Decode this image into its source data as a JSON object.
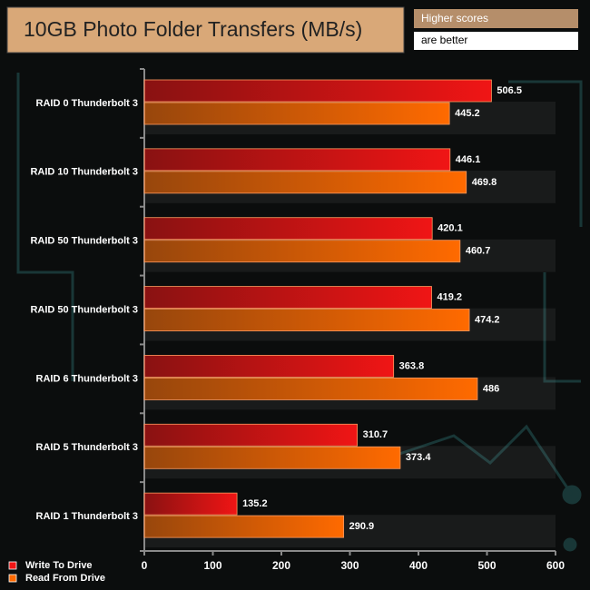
{
  "chart_data": {
    "type": "hbar",
    "title": "10GB Photo Folder Transfers (MB/s)",
    "note_line1": "Higher scores",
    "note_line2": "are better",
    "categories": [
      "RAID 0 Thunderbolt 3",
      "RAID 10 Thunderbolt 3",
      "RAID 50 Thunderbolt 3",
      "RAID 50 Thunderbolt 3",
      "RAID 6 Thunderbolt 3",
      "RAID 5 Thunderbolt 3",
      "RAID 1 Thunderbolt 3"
    ],
    "series": [
      {
        "name": "Write To Drive",
        "color": "#f01515",
        "values": [
          506.5,
          446.1,
          420.1,
          419.2,
          363.8,
          310.7,
          135.2
        ]
      },
      {
        "name": "Read From Drive",
        "color": "#ff6a00",
        "values": [
          445.2,
          469.8,
          460.7,
          474.2,
          486,
          373.4,
          290.9
        ]
      }
    ],
    "xlim": [
      0,
      600
    ],
    "xticks": [
      0,
      100,
      200,
      300,
      400,
      500,
      600
    ],
    "legend": "bottom-left"
  }
}
